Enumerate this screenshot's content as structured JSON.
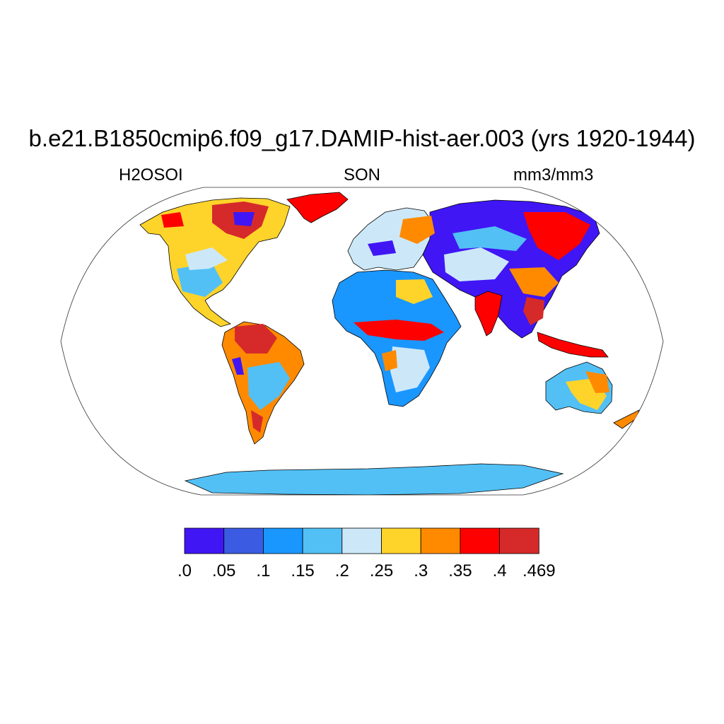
{
  "title": "b.e21.B1850cmip6.f09_g17.DAMIP-hist-aer.003 (yrs 1920-1944)",
  "subtitle_left": "H2OSOI",
  "subtitle_center": "SON",
  "subtitle_right": "mm3/mm3",
  "map": {
    "projection": "Robinson",
    "ocean_color": "#ffffff",
    "coastline_color": "#000000",
    "border_color": "#000000"
  },
  "colorbar": {
    "labels": [
      ".0",
      ".05",
      ".1",
      ".15",
      ".2",
      ".25",
      ".3",
      ".35",
      ".4",
      ".469"
    ],
    "levels": [
      0,
      0.05,
      0.1,
      0.15,
      0.2,
      0.25,
      0.3,
      0.35,
      0.4,
      0.469
    ],
    "colors": [
      "#4016f5",
      "#3b5ce2",
      "#1a96ff",
      "#52c0f5",
      "#cce8f8",
      "#ffd42a",
      "#ff8a00",
      "#ff0000",
      "#d62a2a"
    ]
  }
}
